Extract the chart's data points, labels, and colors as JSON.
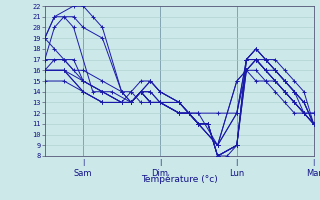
{
  "xlabel": "Température (°c)",
  "bg_color": "#cce8e8",
  "grid_color": "#aacccc",
  "line_color": "#1a1aaa",
  "ylim": [
    8,
    22
  ],
  "yticks": [
    8,
    9,
    10,
    11,
    12,
    13,
    14,
    15,
    16,
    17,
    18,
    19,
    20,
    21,
    22
  ],
  "xlim": [
    0,
    168
  ],
  "day_positions": [
    24,
    72,
    120,
    168
  ],
  "day_labels": [
    "Sam",
    "Dim",
    "Lun",
    "Mar"
  ],
  "ensembles": [
    [
      [
        0,
        19
      ],
      [
        6,
        21
      ],
      [
        18,
        22
      ],
      [
        24,
        22
      ],
      [
        30,
        21
      ],
      [
        36,
        20
      ],
      [
        48,
        14
      ],
      [
        54,
        13
      ],
      [
        60,
        14
      ],
      [
        66,
        15
      ],
      [
        72,
        14
      ],
      [
        84,
        13
      ],
      [
        90,
        12
      ],
      [
        96,
        11
      ],
      [
        102,
        11
      ],
      [
        108,
        8
      ],
      [
        114,
        8
      ],
      [
        120,
        9
      ],
      [
        126,
        17
      ],
      [
        132,
        18
      ],
      [
        138,
        17
      ],
      [
        144,
        16
      ],
      [
        150,
        15
      ],
      [
        156,
        14
      ],
      [
        162,
        13
      ],
      [
        168,
        11
      ]
    ],
    [
      [
        0,
        19
      ],
      [
        6,
        21
      ],
      [
        18,
        21
      ],
      [
        24,
        20
      ],
      [
        36,
        19
      ],
      [
        48,
        14
      ],
      [
        54,
        13
      ],
      [
        60,
        14
      ],
      [
        66,
        15
      ],
      [
        72,
        14
      ],
      [
        84,
        13
      ],
      [
        90,
        12
      ],
      [
        96,
        11
      ],
      [
        102,
        11
      ],
      [
        108,
        8
      ],
      [
        120,
        9
      ],
      [
        126,
        17
      ],
      [
        132,
        18
      ],
      [
        138,
        17
      ],
      [
        144,
        16
      ],
      [
        150,
        15
      ],
      [
        156,
        14
      ],
      [
        162,
        13
      ],
      [
        168,
        11
      ]
    ],
    [
      [
        0,
        17
      ],
      [
        6,
        20
      ],
      [
        12,
        21
      ],
      [
        18,
        20
      ],
      [
        30,
        14
      ],
      [
        42,
        14
      ],
      [
        54,
        13
      ],
      [
        60,
        14
      ],
      [
        66,
        14
      ],
      [
        72,
        13
      ],
      [
        84,
        13
      ],
      [
        90,
        12
      ],
      [
        96,
        11
      ],
      [
        102,
        11
      ],
      [
        108,
        8
      ],
      [
        120,
        9
      ],
      [
        126,
        17
      ],
      [
        132,
        17
      ],
      [
        138,
        17
      ],
      [
        144,
        16
      ],
      [
        150,
        15
      ],
      [
        156,
        14
      ],
      [
        162,
        13
      ],
      [
        168,
        11
      ]
    ],
    [
      [
        0,
        16
      ],
      [
        6,
        17
      ],
      [
        18,
        17
      ],
      [
        24,
        15
      ],
      [
        36,
        14
      ],
      [
        48,
        13
      ],
      [
        54,
        13
      ],
      [
        60,
        14
      ],
      [
        66,
        13
      ],
      [
        72,
        13
      ],
      [
        84,
        12
      ],
      [
        90,
        12
      ],
      [
        96,
        11
      ],
      [
        102,
        11
      ],
      [
        108,
        8
      ],
      [
        120,
        9
      ],
      [
        126,
        16
      ],
      [
        132,
        17
      ],
      [
        138,
        16
      ],
      [
        144,
        16
      ],
      [
        150,
        15
      ],
      [
        156,
        14
      ],
      [
        162,
        12
      ],
      [
        168,
        11
      ]
    ],
    [
      [
        0,
        16
      ],
      [
        12,
        16
      ],
      [
        24,
        15
      ],
      [
        36,
        14
      ],
      [
        48,
        13
      ],
      [
        54,
        13
      ],
      [
        60,
        14
      ],
      [
        66,
        13
      ],
      [
        72,
        13
      ],
      [
        84,
        12
      ],
      [
        90,
        12
      ],
      [
        96,
        11
      ],
      [
        102,
        11
      ],
      [
        108,
        8
      ],
      [
        120,
        9
      ],
      [
        126,
        16
      ],
      [
        132,
        17
      ],
      [
        138,
        16
      ],
      [
        144,
        15
      ],
      [
        150,
        14
      ],
      [
        156,
        13
      ],
      [
        162,
        12
      ],
      [
        168,
        11
      ]
    ],
    [
      [
        0,
        16
      ],
      [
        12,
        16
      ],
      [
        24,
        14
      ],
      [
        36,
        13
      ],
      [
        48,
        13
      ],
      [
        54,
        13
      ],
      [
        60,
        14
      ],
      [
        66,
        13
      ],
      [
        72,
        13
      ],
      [
        84,
        12
      ],
      [
        90,
        12
      ],
      [
        96,
        11
      ],
      [
        108,
        9
      ],
      [
        120,
        15
      ],
      [
        126,
        16
      ],
      [
        132,
        16
      ],
      [
        138,
        15
      ],
      [
        144,
        15
      ],
      [
        150,
        14
      ],
      [
        156,
        13
      ],
      [
        162,
        12
      ],
      [
        168,
        11
      ]
    ],
    [
      [
        0,
        15
      ],
      [
        12,
        15
      ],
      [
        24,
        14
      ],
      [
        36,
        13
      ],
      [
        48,
        13
      ],
      [
        54,
        13
      ],
      [
        60,
        14
      ],
      [
        66,
        13
      ],
      [
        72,
        13
      ],
      [
        84,
        12
      ],
      [
        90,
        12
      ],
      [
        96,
        11
      ],
      [
        108,
        9
      ],
      [
        120,
        15
      ],
      [
        126,
        16
      ],
      [
        132,
        15
      ],
      [
        138,
        15
      ],
      [
        144,
        14
      ],
      [
        150,
        13
      ],
      [
        156,
        12
      ],
      [
        162,
        12
      ],
      [
        168,
        11
      ]
    ],
    [
      [
        0,
        17
      ],
      [
        12,
        17
      ],
      [
        24,
        15
      ],
      [
        36,
        14
      ],
      [
        48,
        13
      ],
      [
        54,
        13
      ],
      [
        60,
        14
      ],
      [
        66,
        14
      ],
      [
        72,
        13
      ],
      [
        84,
        12
      ],
      [
        90,
        12
      ],
      [
        96,
        11
      ],
      [
        108,
        9
      ],
      [
        120,
        12
      ],
      [
        126,
        17
      ],
      [
        132,
        17
      ],
      [
        138,
        16
      ],
      [
        144,
        15
      ],
      [
        150,
        14
      ],
      [
        156,
        13
      ],
      [
        162,
        12
      ],
      [
        168,
        12
      ]
    ],
    [
      [
        0,
        16
      ],
      [
        12,
        16
      ],
      [
        24,
        14
      ],
      [
        36,
        13
      ],
      [
        48,
        13
      ],
      [
        54,
        14
      ],
      [
        60,
        15
      ],
      [
        66,
        15
      ],
      [
        72,
        14
      ],
      [
        84,
        13
      ],
      [
        90,
        12
      ],
      [
        96,
        12
      ],
      [
        108,
        9
      ],
      [
        120,
        12
      ],
      [
        126,
        16
      ],
      [
        132,
        17
      ],
      [
        138,
        16
      ],
      [
        144,
        15
      ],
      [
        150,
        14
      ],
      [
        156,
        13
      ],
      [
        162,
        12
      ],
      [
        168,
        12
      ]
    ],
    [
      [
        0,
        19
      ],
      [
        6,
        18
      ],
      [
        12,
        17
      ],
      [
        18,
        16
      ],
      [
        24,
        16
      ],
      [
        36,
        15
      ],
      [
        48,
        14
      ],
      [
        54,
        14
      ],
      [
        60,
        13
      ],
      [
        66,
        13
      ],
      [
        72,
        13
      ],
      [
        84,
        13
      ],
      [
        90,
        12
      ],
      [
        96,
        12
      ],
      [
        108,
        12
      ],
      [
        120,
        12
      ],
      [
        126,
        17
      ],
      [
        132,
        18
      ],
      [
        138,
        17
      ],
      [
        144,
        17
      ],
      [
        150,
        16
      ],
      [
        156,
        15
      ],
      [
        162,
        14
      ],
      [
        168,
        11
      ]
    ]
  ]
}
